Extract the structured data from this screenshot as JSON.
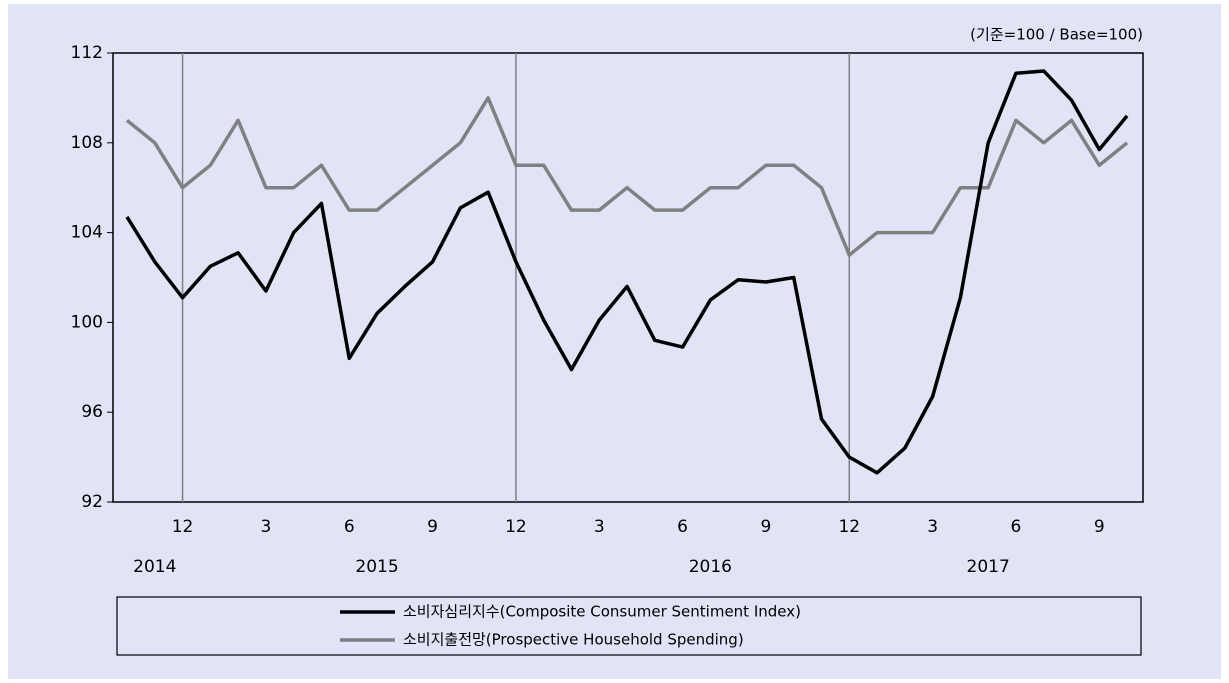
{
  "chart_data": {
    "type": "line",
    "annotation": "(기준=100 / Base=100)",
    "categories": [
      null,
      null,
      "12",
      null,
      null,
      "3",
      null,
      null,
      "6",
      null,
      null,
      "9",
      null,
      null,
      "12",
      null,
      null,
      "3",
      null,
      null,
      "6",
      null,
      null,
      "9",
      null,
      null,
      "12",
      null,
      null,
      "3",
      null,
      null,
      "6",
      null,
      null,
      "9",
      null
    ],
    "x_groups": [
      null,
      "2014",
      null,
      null,
      null,
      null,
      null,
      null,
      null,
      "2015",
      null,
      null,
      null,
      null,
      null,
      null,
      null,
      null,
      null,
      null,
      null,
      "2016",
      null,
      null,
      null,
      null,
      null,
      null,
      null,
      null,
      null,
      "2017",
      null,
      null,
      null,
      null,
      null
    ],
    "series": [
      {
        "name": "소비자심리지수(Composite Consumer Sentiment Index)",
        "color": "#000000",
        "values": [
          104.7,
          102.7,
          101.1,
          102.5,
          103.1,
          101.4,
          104.0,
          105.3,
          98.4,
          100.4,
          101.6,
          102.7,
          105.1,
          105.8,
          102.7,
          100.1,
          97.9,
          100.1,
          101.6,
          99.2,
          98.9,
          101.0,
          101.9,
          101.8,
          102.0,
          95.7,
          94.0,
          93.3,
          94.4,
          96.7,
          101.1,
          108.0,
          111.1,
          111.2,
          109.9,
          107.7,
          109.2
        ]
      },
      {
        "name": "소비지출전망(Prospective Household Spending)",
        "color": "#808080",
        "values": [
          109,
          108,
          106,
          107,
          109,
          106,
          106,
          107,
          105,
          105,
          106,
          107,
          108,
          110,
          107,
          107,
          105,
          105,
          106,
          105,
          105,
          106,
          106,
          107,
          107,
          106,
          103,
          104,
          104,
          104,
          106,
          106,
          109,
          108,
          109,
          107,
          108
        ]
      }
    ],
    "ylim": [
      92,
      112
    ],
    "yticks": [
      92,
      96,
      100,
      104,
      108,
      112
    ]
  }
}
